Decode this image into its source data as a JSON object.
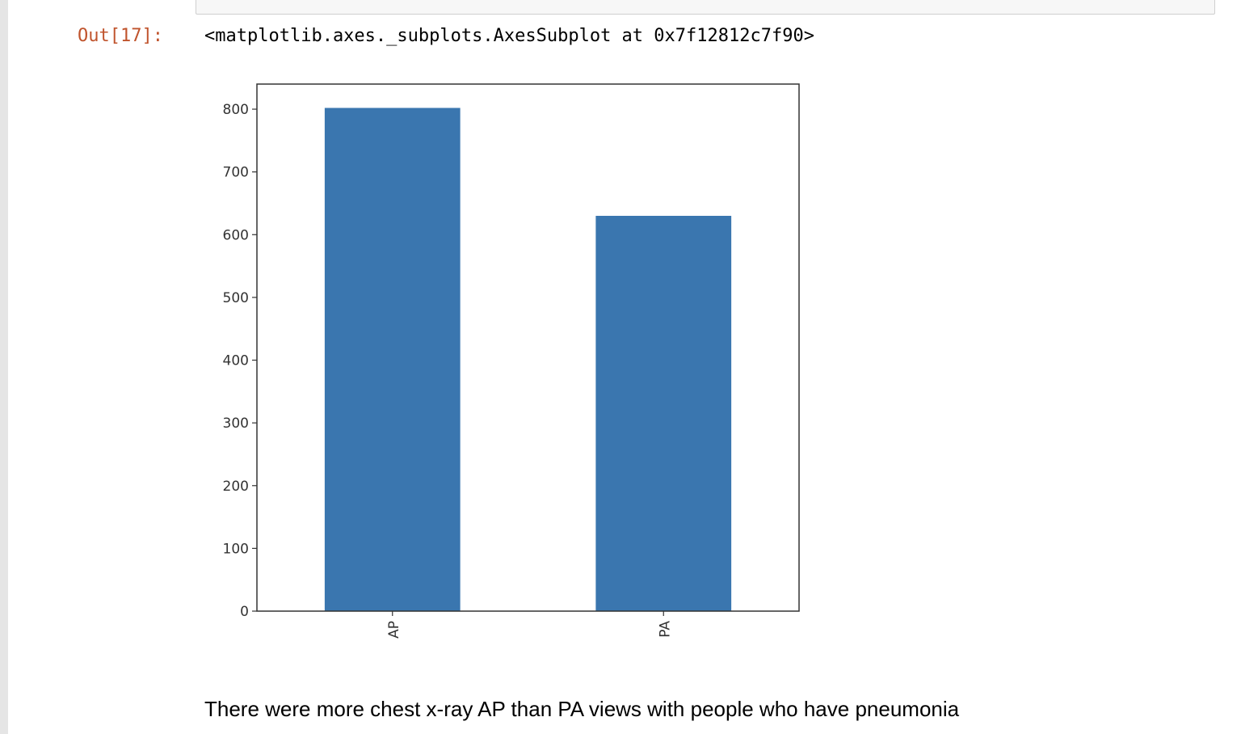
{
  "notebook": {
    "output_prompt": "Out[17]:",
    "output_repr": "<matplotlib.axes._subplots.AxesSubplot at 0x7f12812c7f90>",
    "markdown_text": "There were more chest x-ray AP than PA views with people who have pneumonia"
  },
  "chart_data": {
    "type": "bar",
    "categories": [
      "AP",
      "PA"
    ],
    "values": [
      802,
      630
    ],
    "ylim": [
      0,
      840
    ],
    "yticks": [
      0,
      100,
      200,
      300,
      400,
      500,
      600,
      700,
      800
    ],
    "title": "",
    "xlabel": "",
    "ylabel": "",
    "bar_color": "#3a76af",
    "grid": false
  },
  "colors": {
    "prompt": "#c0542d",
    "bar": "#3a76af",
    "gutter": "#e5e5e5"
  }
}
